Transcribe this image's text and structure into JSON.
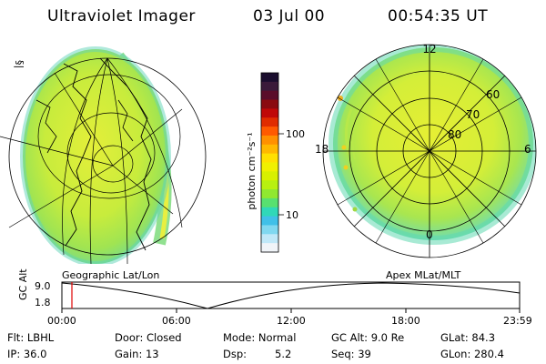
{
  "header": {
    "title": "Ultraviolet Imager",
    "date": "03 Jul 00",
    "time": "00:54:35 UT"
  },
  "left_panel": {
    "caption": "Geographic Lat/Lon",
    "orientation_mark": "§|"
  },
  "right_panel": {
    "caption": "Apex MLat/MLT",
    "mlt_labels": {
      "top": "12",
      "left": "18",
      "right": "6",
      "bottom": "0"
    },
    "lat_labels": [
      "60",
      "70",
      "80"
    ]
  },
  "colorbar": {
    "unit_label": "photon cm⁻²s⁻¹",
    "ticks": [
      "100",
      "10"
    ],
    "colors": [
      "#1a0d2e",
      "#3a1a3a",
      "#5a0d2a",
      "#8a0a10",
      "#c00808",
      "#e02c00",
      "#ff5a00",
      "#ff9000",
      "#ffb800",
      "#ffe000",
      "#f0f000",
      "#d8f000",
      "#b8f010",
      "#90e830",
      "#58e070",
      "#30d8b8",
      "#40c0e8",
      "#80d8f0",
      "#c0e8f8",
      "#f0f4f8"
    ]
  },
  "timeline": {
    "ylabel": "GC Alt",
    "y_ticks": [
      "9.0",
      "1.8"
    ],
    "x_ticks": [
      "00:00",
      "06:00",
      "12:00",
      "18:00",
      "23:59"
    ],
    "marker_color": "#e00000"
  },
  "info": {
    "flt": "Flt: LBHL",
    "ip": "IP: 36.0",
    "door": "Door: Closed",
    "gain": "Gain: 13",
    "mode": "Mode: Normal",
    "dsp_label": "Dsp:",
    "dsp_value": "5.2",
    "gc_alt": "GC Alt: 9.0 Re",
    "seq": "Seq: 39",
    "glat": "GLat: 84.3",
    "glon": "GLon: 280.4"
  }
}
